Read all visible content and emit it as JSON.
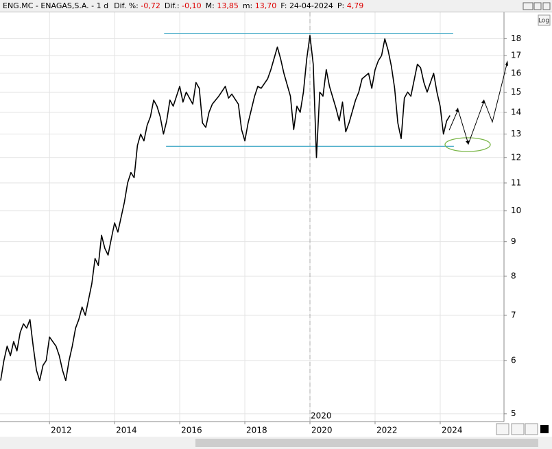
{
  "header": {
    "symbol": "ENG.MC - ENAGAS,S.A. - 1 d",
    "items": [
      {
        "label": "Dif. %:",
        "value": "-0,72"
      },
      {
        "label": "Dif.:",
        "value": "-0,10"
      },
      {
        "label": "M:",
        "value": "13,85"
      },
      {
        "label": "m:",
        "value": "13,70"
      },
      {
        "label": "F:",
        "value": "24-04-2024"
      },
      {
        "label": "P:",
        "value": "4,79"
      }
    ]
  },
  "ui": {
    "log_button": "Log"
  },
  "chart_data": {
    "type": "line",
    "color": "#000000",
    "log_scale": true,
    "grid": true,
    "x": [
      2010.5,
      2010.6,
      2010.7,
      2010.8,
      2010.9,
      2011.0,
      2011.1,
      2011.2,
      2011.3,
      2011.4,
      2011.5,
      2011.6,
      2011.7,
      2011.8,
      2011.9,
      2012.0,
      2012.2,
      2012.3,
      2012.4,
      2012.5,
      2012.6,
      2012.7,
      2012.8,
      2012.9,
      2013.0,
      2013.1,
      2013.3,
      2013.4,
      2013.5,
      2013.6,
      2013.7,
      2013.8,
      2013.9,
      2014.0,
      2014.1,
      2014.3,
      2014.4,
      2014.5,
      2014.6,
      2014.7,
      2014.8,
      2014.9,
      2015.0,
      2015.1,
      2015.2,
      2015.3,
      2015.4,
      2015.5,
      2015.6,
      2015.7,
      2015.8,
      2016.0,
      2016.1,
      2016.2,
      2016.4,
      2016.5,
      2016.6,
      2016.7,
      2016.8,
      2016.9,
      2017.0,
      2017.2,
      2017.4,
      2017.5,
      2017.6,
      2017.8,
      2017.9,
      2018.0,
      2018.1,
      2018.3,
      2018.4,
      2018.5,
      2018.7,
      2018.8,
      2019.0,
      2019.1,
      2019.2,
      2019.4,
      2019.5,
      2019.6,
      2019.7,
      2019.8,
      2019.9,
      2020.0,
      2020.1,
      2020.2,
      2020.3,
      2020.4,
      2020.5,
      2020.6,
      2020.8,
      2020.9,
      2021.0,
      2021.1,
      2021.2,
      2021.4,
      2021.5,
      2021.6,
      2021.8,
      2021.9,
      2022.0,
      2022.1,
      2022.2,
      2022.3,
      2022.4,
      2022.5,
      2022.6,
      2022.7,
      2022.8,
      2022.9,
      2023.0,
      2023.1,
      2023.3,
      2023.4,
      2023.5,
      2023.6,
      2023.8,
      2023.9,
      2024.0,
      2024.1,
      2024.2,
      2024.3
    ],
    "values": [
      5.6,
      6.0,
      6.3,
      6.1,
      6.4,
      6.2,
      6.6,
      6.8,
      6.7,
      6.9,
      6.3,
      5.8,
      5.6,
      5.9,
      6.0,
      6.5,
      6.3,
      6.1,
      5.8,
      5.6,
      6.0,
      6.3,
      6.7,
      6.9,
      7.2,
      7.0,
      7.8,
      8.5,
      8.3,
      9.2,
      8.8,
      8.6,
      9.1,
      9.6,
      9.3,
      10.3,
      11.0,
      11.4,
      11.2,
      12.5,
      13.0,
      12.7,
      13.4,
      13.8,
      14.6,
      14.3,
      13.8,
      13.0,
      13.6,
      14.6,
      14.3,
      15.3,
      14.5,
      15.0,
      14.4,
      15.5,
      15.2,
      13.5,
      13.3,
      14.0,
      14.4,
      14.8,
      15.3,
      14.7,
      14.9,
      14.4,
      13.2,
      12.7,
      13.5,
      14.8,
      15.3,
      15.2,
      15.7,
      16.2,
      17.5,
      16.8,
      16.0,
      14.8,
      13.2,
      14.3,
      14.0,
      15.0,
      16.8,
      18.2,
      16.5,
      12.0,
      15.0,
      14.8,
      16.2,
      15.3,
      14.2,
      13.6,
      14.5,
      13.1,
      13.5,
      14.6,
      15.0,
      15.7,
      16.0,
      15.2,
      16.2,
      16.7,
      17.0,
      18.0,
      17.3,
      16.4,
      15.2,
      13.5,
      12.8,
      14.7,
      15.0,
      14.8,
      16.5,
      16.3,
      15.5,
      15.0,
      16.0,
      15.0,
      14.3,
      13.0,
      13.6,
      13.85
    ],
    "xlim": [
      2010.48,
      2025.96
    ],
    "xticks": [
      2012,
      2014,
      2016,
      2018,
      2020,
      2022,
      2024
    ],
    "ylim": [
      4.87,
      19.7
    ],
    "yticks": [
      5,
      6,
      7,
      8,
      9,
      10,
      11,
      12,
      13,
      14,
      15,
      16,
      17,
      18
    ],
    "hlines": [
      {
        "value": 18.34,
        "x": [
          2015.52,
          2024.4
        ]
      },
      {
        "value": 12.47,
        "x": [
          2015.58,
          2024.42
        ]
      }
    ],
    "marker": {
      "x": 2020.0,
      "label": "2020"
    }
  }
}
